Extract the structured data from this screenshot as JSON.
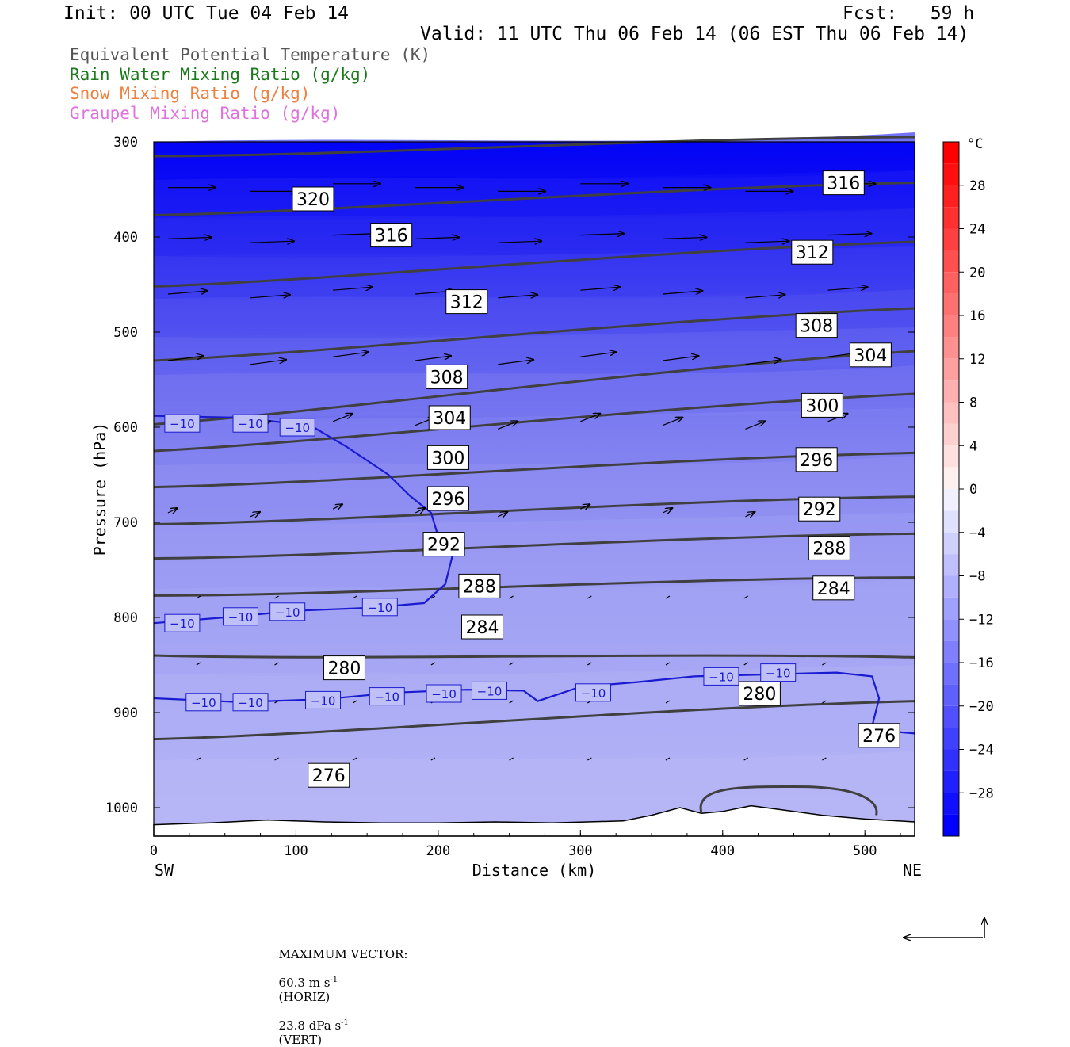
{
  "header": {
    "init": "Init: 00 UTC Tue 04 Feb 14",
    "fcst": "Fcst:   59 h",
    "valid": "Valid: 11 UTC Thu 06 Feb 14 (06 EST Thu 06 Feb 14)"
  },
  "legend": [
    {
      "label": "Equivalent Potential Temperature (K)",
      "color": "#555555"
    },
    {
      "label": "Rain Water Mixing Ratio (g/kg)",
      "color": "#1a7a1a"
    },
    {
      "label": "Snow Mixing Ratio (g/kg)",
      "color": "#f08040"
    },
    {
      "label": "Graupel Mixing Ratio (g/kg)",
      "color": "#e070e0"
    }
  ],
  "footer": {
    "max_vector_label": "MAXIMUM VECTOR:",
    "horiz_value": "60.3 m s",
    "horiz_unit": "(HORIZ)",
    "vert_value": "23.8 dPa s",
    "vert_unit": "(VERT)",
    "exponent": "-1"
  },
  "chart_data": {
    "type": "cross-section",
    "xlabel": "Distance (km)",
    "ylabel": "Pressure (hPa)",
    "x_left_label": "SW",
    "x_right_label": "NE",
    "xlim": [
      0,
      535
    ],
    "ylim": [
      1030,
      300
    ],
    "x_ticks": [
      0,
      100,
      200,
      300,
      400,
      500
    ],
    "y_ticks": [
      300,
      400,
      500,
      600,
      700,
      800,
      900,
      1000
    ],
    "colorbar": {
      "unit": "°C",
      "ticks": [
        28,
        24,
        20,
        16,
        12,
        8,
        4,
        0,
        -4,
        -8,
        -12,
        -16,
        -20,
        -24,
        -28
      ],
      "range": [
        -32,
        32
      ]
    },
    "theta_e_contours": [
      {
        "value": 320,
        "label_x": 112,
        "label_p": 360,
        "p_left": 315,
        "p_right": 295
      },
      {
        "value": 316,
        "label_x": 167,
        "label_p": 398,
        "p_left": 377,
        "p_right": 343
      },
      {
        "value": 316,
        "label_x": 485,
        "label_p": 343,
        "p_left": 377,
        "p_right": 343
      },
      {
        "value": 312,
        "label_x": 220,
        "label_p": 468,
        "p_left": 452,
        "p_right": 405
      },
      {
        "value": 312,
        "label_x": 463,
        "label_p": 416,
        "p_left": 452,
        "p_right": 405
      },
      {
        "value": 308,
        "label_x": 206,
        "label_p": 547,
        "p_left": 530,
        "p_right": 475
      },
      {
        "value": 308,
        "label_x": 466,
        "label_p": 493,
        "p_left": 530,
        "p_right": 475
      },
      {
        "value": 304,
        "label_x": 208,
        "label_p": 590,
        "p_left": 597,
        "p_right": 520
      },
      {
        "value": 304,
        "label_x": 504,
        "label_p": 524,
        "p_left": 597,
        "p_right": 520
      },
      {
        "value": 300,
        "label_x": 207,
        "label_p": 632,
        "p_left": 625,
        "p_right": 565
      },
      {
        "value": 300,
        "label_x": 470,
        "label_p": 577,
        "p_left": 625,
        "p_right": 565
      },
      {
        "value": 296,
        "label_x": 207,
        "label_p": 675,
        "p_left": 663,
        "p_right": 627
      },
      {
        "value": 296,
        "label_x": 466,
        "label_p": 634,
        "p_left": 663,
        "p_right": 627
      },
      {
        "value": 292,
        "label_x": 204,
        "label_p": 723,
        "p_left": 702,
        "p_right": 673
      },
      {
        "value": 292,
        "label_x": 468,
        "label_p": 686,
        "p_left": 702,
        "p_right": 673
      },
      {
        "value": 288,
        "label_x": 229,
        "label_p": 767,
        "p_left": 738,
        "p_right": 712
      },
      {
        "value": 288,
        "label_x": 475,
        "label_p": 727,
        "p_left": 738,
        "p_right": 712
      },
      {
        "value": 284,
        "label_x": 231,
        "label_p": 810,
        "p_left": 777,
        "p_right": 758
      },
      {
        "value": 284,
        "label_x": 478,
        "label_p": 769,
        "p_left": 777,
        "p_right": 758
      },
      {
        "value": 280,
        "label_x": 134,
        "label_p": 853,
        "p_left": 840,
        "p_right": 842
      },
      {
        "value": 280,
        "label_x": 426,
        "label_p": 880,
        "p_left": 840,
        "p_right": 842
      },
      {
        "value": 276,
        "label_x": 123,
        "label_p": 966,
        "p_left": 928,
        "p_right": 888
      },
      {
        "value": 276,
        "label_x": 510,
        "label_p": 924,
        "p_left": 928,
        "p_right": 888
      }
    ],
    "isotherm_minus10": {
      "value": "−10",
      "upper_label_x": [
        20,
        68,
        101
      ],
      "upper_label_p": [
        596,
        596,
        600
      ],
      "mid_label_x": [
        20,
        61,
        94,
        159
      ],
      "mid_label_p": [
        806,
        799,
        794,
        789
      ],
      "lower_label_x": [
        35,
        68,
        119,
        164,
        204,
        236,
        309,
        399,
        439
      ],
      "lower_label_p": [
        889,
        889,
        887,
        883,
        880,
        877,
        879,
        862,
        858
      ]
    }
  }
}
